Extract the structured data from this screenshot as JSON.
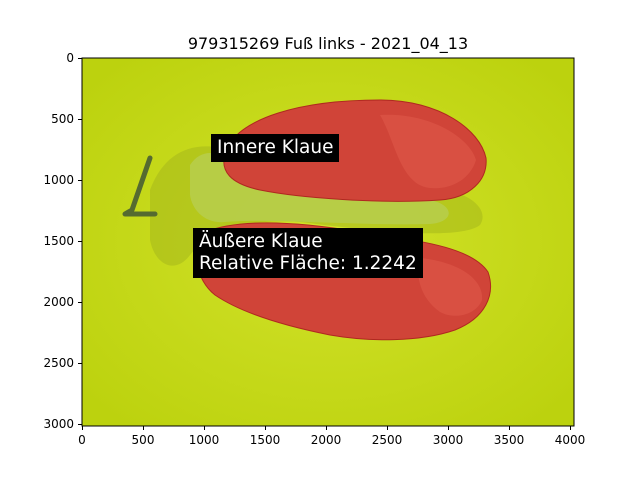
{
  "title": "979315269 Fuß links - 2021_04_13",
  "axes": {
    "x_ticks": [
      "0",
      "500",
      "1000",
      "1500",
      "2000",
      "2500",
      "3000",
      "3500",
      "4000"
    ],
    "y_ticks": [
      "0",
      "500",
      "1000",
      "1500",
      "2000",
      "2500",
      "3000"
    ]
  },
  "photo": {
    "subject": "hoof-claws-segmented",
    "background_color": "#c8dc14",
    "overlay_color": "#d23232"
  },
  "annotations": {
    "inner_label": "Innere Klaue",
    "outer_label": "Äußere Klaue",
    "relative_area": "Relative Fläche: 1.2242"
  }
}
